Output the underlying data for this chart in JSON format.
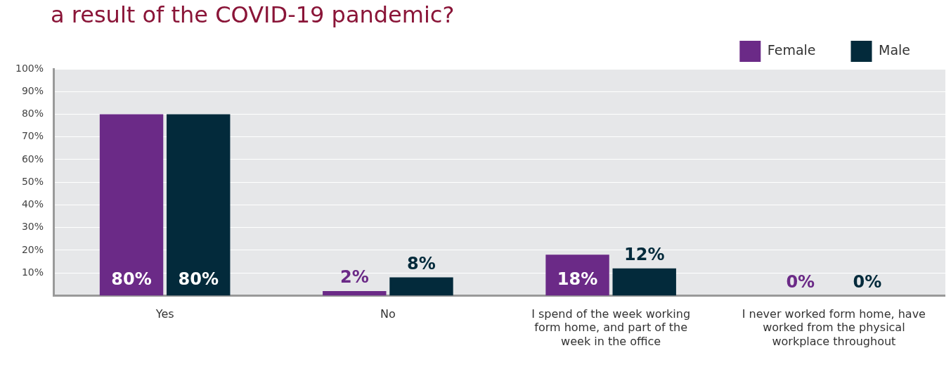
{
  "chart_data": {
    "type": "bar",
    "title": "a result of the COVID-19 pandemic?",
    "categories": [
      "Yes",
      "No",
      "I spend of the week working form home, and part of the week in the office",
      "I never worked form home, have worked from the physical workplace throughout"
    ],
    "series": [
      {
        "name": "Female",
        "color": "#6b2a87",
        "values": [
          80,
          2,
          18,
          0
        ]
      },
      {
        "name": "Male",
        "color": "#032a3b",
        "values": [
          80,
          8,
          12,
          0
        ]
      }
    ],
    "ylim": [
      0,
      100
    ],
    "yticks": [
      {
        "value": 10,
        "label": "10%"
      },
      {
        "value": 20,
        "label": "20%"
      },
      {
        "value": 30,
        "label": "30%"
      },
      {
        "value": 40,
        "label": "40%"
      },
      {
        "value": 50,
        "label": "50%"
      },
      {
        "value": 60,
        "label": "60%"
      },
      {
        "value": 70,
        "label": "70%"
      },
      {
        "value": 80,
        "label": "80%"
      },
      {
        "value": 90,
        "label": "90%"
      },
      {
        "value": 100,
        "label": "100%"
      }
    ],
    "value_labels": [
      [
        "80%",
        "2%",
        "18%",
        "0%"
      ],
      [
        "80%",
        "8%",
        "12%",
        "0%"
      ]
    ],
    "grid": "y",
    "legend": "top right"
  }
}
